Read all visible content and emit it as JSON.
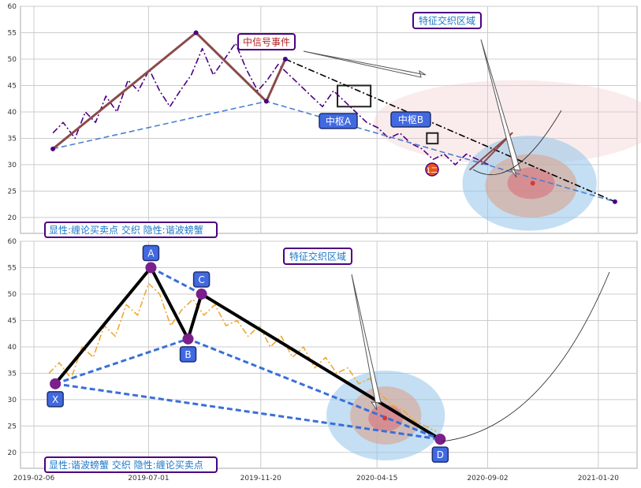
{
  "figure": {
    "background": "#ffffff",
    "grid_color": "#cccccc"
  },
  "x_ticks": [
    "2019-02-06",
    "2019-07-01",
    "2019-11-20",
    "2020-04-15",
    "2020-09-02",
    "2021-01-20"
  ],
  "chart_data": [
    {
      "type": "line",
      "panel": "top",
      "ylim": [
        17,
        60
      ],
      "yticks": [
        20,
        25,
        30,
        35,
        40,
        45,
        50,
        55,
        60
      ],
      "grid": true,
      "series": [
        {
          "role": "price",
          "color": "#4b0082",
          "style": "dash-dot",
          "points": [
            [
              "2019-03-02",
              36
            ],
            [
              "2019-03-15",
              38
            ],
            [
              "2019-03-30",
              35
            ],
            [
              "2019-04-12",
              40
            ],
            [
              "2019-04-25",
              38
            ],
            [
              "2019-05-08",
              43
            ],
            [
              "2019-05-22",
              40
            ],
            [
              "2019-06-05",
              46
            ],
            [
              "2019-06-18",
              44
            ],
            [
              "2019-07-02",
              48
            ],
            [
              "2019-07-15",
              44
            ],
            [
              "2019-07-28",
              41
            ],
            [
              "2019-08-10",
              44
            ],
            [
              "2019-08-24",
              47
            ],
            [
              "2019-09-07",
              52
            ],
            [
              "2019-09-21",
              47
            ],
            [
              "2019-10-05",
              50
            ],
            [
              "2019-10-19",
              53
            ],
            [
              "2019-11-02",
              48
            ],
            [
              "2019-11-16",
              44
            ],
            [
              "2019-11-28",
              46
            ],
            [
              "2019-12-12",
              49
            ],
            [
              "2019-12-26",
              47
            ],
            [
              "2020-01-09",
              45
            ],
            [
              "2020-01-23",
              43
            ],
            [
              "2020-02-06",
              41
            ],
            [
              "2020-02-20",
              44
            ],
            [
              "2020-03-05",
              42
            ],
            [
              "2020-03-19",
              40
            ],
            [
              "2020-04-02",
              38
            ],
            [
              "2020-04-16",
              37
            ],
            [
              "2020-04-30",
              35
            ],
            [
              "2020-05-14",
              36
            ],
            [
              "2020-05-28",
              34
            ],
            [
              "2020-06-11",
              33
            ],
            [
              "2020-06-25",
              31
            ],
            [
              "2020-07-09",
              32
            ],
            [
              "2020-07-23",
              30
            ],
            [
              "2020-08-06",
              32
            ],
            [
              "2020-08-20",
              31
            ],
            [
              "2020-09-03",
              30
            ]
          ]
        },
        {
          "role": "chanlun-strokes",
          "color": "#8b4a4a",
          "width": 3,
          "points": [
            [
              "2019-03-02",
              33
            ],
            [
              "2019-08-30",
              55
            ],
            [
              "2019-11-27",
              42
            ],
            [
              "2019-12-21",
              50
            ]
          ]
        },
        {
          "role": "trend",
          "color": "#000000",
          "style": "dash-dot",
          "points": [
            [
              "2019-12-21",
              50
            ],
            [
              "2021-02-10",
              23
            ]
          ]
        },
        {
          "role": "support",
          "color": "#4a7fd0",
          "style": "dashed",
          "points": [
            [
              "2019-03-02",
              33
            ],
            [
              "2019-11-27",
              42
            ],
            [
              "2021-02-10",
              23
            ]
          ]
        },
        {
          "role": "zigzag",
          "color": "#8b4a4a",
          "width": 2,
          "points": [
            [
              "2020-08-10",
              29
            ],
            [
              "2020-10-03",
              36
            ],
            [
              "2020-08-25",
              30
            ]
          ]
        }
      ],
      "zones": [
        {
          "name": "zhongshu-A",
          "x": [
            "2020-02-25",
            "2020-04-07"
          ],
          "y": [
            41,
            45
          ]
        },
        {
          "name": "zhongshu-B",
          "x": [
            "2020-06-17",
            "2020-07-01"
          ],
          "y": [
            34,
            36
          ]
        }
      ],
      "ellipses": [
        {
          "cx": "2020-10-08",
          "cy": 38,
          "rx_days": 180,
          "ry": 8,
          "color": "#f2c8c8",
          "opacity": 0.35
        },
        {
          "cx": "2020-10-25",
          "cy": 26.5,
          "rx_days": 85,
          "ry": 9,
          "color": "#93c5ea",
          "opacity": 0.55
        },
        {
          "cx": "2020-10-27",
          "cy": 26,
          "rx_days": 58,
          "ry": 6,
          "color": "#d8a48f",
          "opacity": 0.6
        },
        {
          "cx": "2020-10-27",
          "cy": 26.5,
          "rx_days": 30,
          "ry": 3,
          "color": "#d9646e",
          "opacity": 0.5
        }
      ],
      "points": [
        {
          "x": "2019-03-02",
          "y": 33
        },
        {
          "x": "2019-08-30",
          "y": 55
        },
        {
          "x": "2019-11-27",
          "y": 42
        },
        {
          "x": "2019-12-21",
          "y": 50
        },
        {
          "x": "2021-02-10",
          "y": 23
        }
      ],
      "forecast_point": {
        "x": "2020-10-29",
        "y": 26.5,
        "color": "#d13b3b"
      },
      "annotations": {
        "signal_event": "中信号事件",
        "feature_zone": "特征交织区域",
        "zhongshu_a": "中枢A",
        "zhongshu_b": "中枢B",
        "marker": "1二",
        "legend": "显性:缠论买卖点 交织 隐性:谐波螃蟹"
      }
    },
    {
      "type": "line",
      "panel": "bottom",
      "ylim": [
        17,
        60
      ],
      "yticks": [
        20,
        25,
        30,
        35,
        40,
        45,
        50,
        55,
        60
      ],
      "grid": true,
      "series": [
        {
          "role": "price",
          "color": "#f0a830",
          "style": "dash-dot",
          "points": [
            [
              "2019-02-25",
              35
            ],
            [
              "2019-03-10",
              37
            ],
            [
              "2019-03-25",
              34
            ],
            [
              "2019-04-08",
              40
            ],
            [
              "2019-04-22",
              38
            ],
            [
              "2019-05-06",
              44
            ],
            [
              "2019-05-20",
              42
            ],
            [
              "2019-06-03",
              48
            ],
            [
              "2019-06-17",
              46
            ],
            [
              "2019-07-01",
              52
            ],
            [
              "2019-07-15",
              50
            ],
            [
              "2019-07-29",
              44
            ],
            [
              "2019-08-12",
              47
            ],
            [
              "2019-08-26",
              49
            ],
            [
              "2019-09-09",
              46
            ],
            [
              "2019-09-23",
              48
            ],
            [
              "2019-10-07",
              44
            ],
            [
              "2019-10-21",
              45
            ],
            [
              "2019-11-04",
              42
            ],
            [
              "2019-11-18",
              44
            ],
            [
              "2019-12-02",
              40
            ],
            [
              "2019-12-16",
              42
            ],
            [
              "2019-12-30",
              38
            ],
            [
              "2020-01-13",
              40
            ],
            [
              "2020-01-27",
              36
            ],
            [
              "2020-02-10",
              38
            ],
            [
              "2020-02-24",
              35
            ],
            [
              "2020-03-09",
              36
            ],
            [
              "2020-03-23",
              33
            ],
            [
              "2020-04-06",
              34
            ],
            [
              "2020-04-20",
              31
            ],
            [
              "2020-05-04",
              29
            ],
            [
              "2020-05-18",
              28
            ],
            [
              "2020-06-01",
              26
            ],
            [
              "2020-06-15",
              25
            ],
            [
              "2020-06-29",
              24
            ]
          ]
        },
        {
          "role": "harmonic-legs",
          "color": "#000000",
          "width": 4,
          "points": [
            [
              "2019-03-05",
              33
            ],
            [
              "2019-07-04",
              55
            ],
            [
              "2019-08-20",
              41.5
            ],
            [
              "2019-09-06",
              50
            ],
            [
              "2020-07-04",
              22.5
            ]
          ]
        },
        {
          "role": "harmonic-dashes",
          "color": "#3a6fd8",
          "style": "dashed",
          "width": 3,
          "points": [
            [
              "2019-03-05",
              33
            ],
            [
              "2019-08-20",
              41.5
            ],
            [
              "2020-07-04",
              22.5
            ]
          ]
        },
        {
          "role": "harmonic-dashes-2",
          "color": "#3a6fd8",
          "style": "dashed",
          "width": 3,
          "points": [
            [
              "2019-03-05",
              33
            ],
            [
              "2020-07-04",
              22.5
            ]
          ]
        },
        {
          "role": "harmonic-dashes-3",
          "color": "#3a6fd8",
          "style": "dashed",
          "width": 3,
          "points": [
            [
              "2019-07-04",
              55
            ],
            [
              "2019-09-06",
              50
            ]
          ]
        }
      ],
      "harmonic_points": [
        {
          "label": "X",
          "x": "2019-03-05",
          "y": 33
        },
        {
          "label": "A",
          "x": "2019-07-04",
          "y": 55
        },
        {
          "label": "B",
          "x": "2019-08-20",
          "y": 41.5
        },
        {
          "label": "C",
          "x": "2019-09-06",
          "y": 50
        },
        {
          "label": "D",
          "x": "2020-07-04",
          "y": 22.5
        }
      ],
      "ellipses": [
        {
          "cx": "2020-04-26",
          "cy": 27,
          "rx_days": 75,
          "ry": 8.5,
          "color": "#93c5ea",
          "opacity": 0.55
        },
        {
          "cx": "2020-04-26",
          "cy": 27,
          "rx_days": 45,
          "ry": 5.5,
          "color": "#d8a48f",
          "opacity": 0.6
        },
        {
          "cx": "2020-04-26",
          "cy": 26.5,
          "rx_days": 22,
          "ry": 2.5,
          "color": "#d9646e",
          "opacity": 0.5
        }
      ],
      "forecast_point": {
        "x": "2020-04-25",
        "y": 26.5,
        "color": "#d13b3b"
      },
      "annotations": {
        "feature_zone": "特征交织区域",
        "legend": "显性:谐波螃蟹 交织 隐性:缠论买卖点"
      }
    }
  ]
}
